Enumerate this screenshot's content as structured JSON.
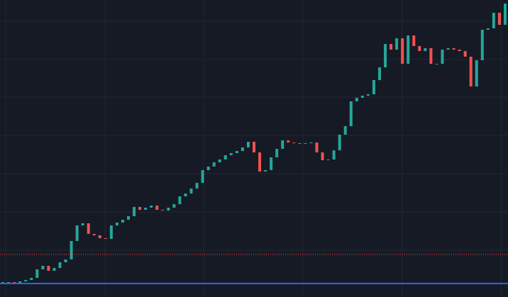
{
  "chart_data": {
    "type": "candlestick",
    "values": [
      21,
      21,
      19,
      22,
      24,
      27,
      39,
      44,
      37,
      41,
      49,
      53,
      79,
      101,
      104,
      89,
      87,
      83,
      82,
      101,
      105,
      109,
      114,
      127,
      123,
      126,
      129,
      123,
      122,
      126,
      131,
      142,
      146,
      153,
      161,
      179,
      184,
      190,
      194,
      200,
      203,
      206,
      211,
      219,
      204,
      177,
      179,
      197,
      209,
      221,
      218,
      217,
      216,
      217,
      218,
      204,
      193,
      194,
      207,
      229,
      241,
      276,
      281,
      284,
      286,
      306,
      324,
      357,
      349,
      365,
      329,
      369,
      354,
      347,
      351,
      329,
      329,
      349,
      351,
      349,
      347,
      339,
      297,
      334,
      377,
      379,
      401,
      384,
      414
    ],
    "ylim": [
      0,
      419
    ],
    "grid_y": [
      389,
      335,
      282,
      228,
      174,
      120,
      66
    ],
    "up_color": "#26a69a",
    "down_color": "#ef5350",
    "price_lines": [
      {
        "value": 60,
        "color": "#ef5350",
        "style": "dotted"
      },
      {
        "value": 19,
        "color": "#2962ff",
        "style": "solid"
      }
    ]
  }
}
